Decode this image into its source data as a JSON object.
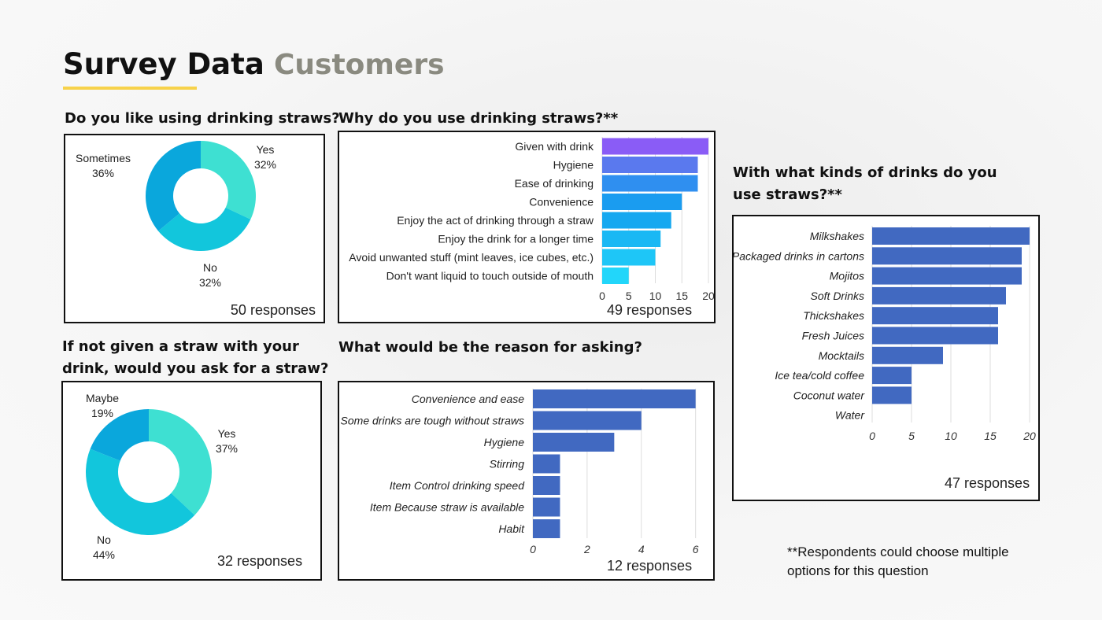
{
  "header": {
    "title": "Survey Data",
    "subtitle": "Customers"
  },
  "colors": {
    "accent_underline": "#f7d24a",
    "bar_blue": "#4169c1"
  },
  "footnote": "**Respondents could choose multiple options for this question",
  "chart_data": [
    {
      "id": "like-straws",
      "type": "pie",
      "title": "Do you like using drinking straws?",
      "labels": [
        "Yes",
        "No",
        "Sometimes"
      ],
      "values": [
        32,
        32,
        36
      ],
      "value_labels": [
        "32%",
        "32%",
        "36%"
      ],
      "colors": [
        "#3ee0d2",
        "#12c6dc",
        "#0aa7dc"
      ],
      "responses": "50 responses"
    },
    {
      "id": "why-straws",
      "type": "bar",
      "orientation": "horizontal",
      "title": "Why do you use drinking straws?**",
      "categories": [
        "Given with drink",
        "Hygiene",
        "Ease of drinking",
        "Convenience",
        "Enjoy the act of drinking through a straw",
        "Enjoy the drink for a longer time",
        "Avoid unwanted stuff (mint leaves, ice cubes, etc.)",
        "Don't want liquid to touch outside of mouth"
      ],
      "values": [
        20,
        18,
        18,
        15,
        13,
        11,
        10,
        5
      ],
      "colors": [
        "#8a5cf6",
        "#5a79ee",
        "#2f8ff0",
        "#1a9cf0",
        "#16a8f0",
        "#1ab8f4",
        "#1ec6f7",
        "#22d6fa"
      ],
      "xticks": [
        "0",
        "5",
        "10",
        "15",
        "20"
      ],
      "xlim": [
        0,
        20
      ],
      "responses": "49 responses"
    },
    {
      "id": "drink-kinds",
      "type": "bar",
      "orientation": "horizontal",
      "title": "With what kinds of drinks do you use straws?**",
      "categories": [
        "Milkshakes",
        "Packaged drinks in cartons",
        "Mojitos",
        "Soft Drinks",
        "Thickshakes",
        "Fresh Juices",
        "Mocktails",
        "Ice tea/cold coffee",
        "Coconut water",
        "Water"
      ],
      "values": [
        20,
        19,
        19,
        17,
        16,
        16,
        9,
        5,
        5,
        0
      ],
      "xticks": [
        "0",
        "5",
        "10",
        "15",
        "20"
      ],
      "xlim": [
        0,
        20
      ],
      "responses": "47 responses"
    },
    {
      "id": "ask-straw",
      "type": "pie",
      "title": "If not given a straw with your drink, would you ask for a straw?",
      "labels": [
        "Yes",
        "No",
        "Maybe"
      ],
      "values": [
        37,
        44,
        19
      ],
      "value_labels": [
        "37%",
        "44%",
        "19%"
      ],
      "colors": [
        "#3ee0d2",
        "#12c6dc",
        "#0aa7dc"
      ],
      "responses": "32 responses"
    },
    {
      "id": "reason-asking",
      "type": "bar",
      "orientation": "horizontal",
      "title": "What would be the reason for asking?",
      "categories": [
        "Convenience and ease",
        "Some drinks are tough without straws",
        "Hygiene",
        "Stirring",
        "Item Control drinking speed",
        "Item Because straw is available",
        "Habit"
      ],
      "values": [
        6,
        4,
        3,
        1,
        1,
        1,
        1
      ],
      "xticks": [
        "0",
        "2",
        "4",
        "6"
      ],
      "xlim": [
        0,
        6.3
      ],
      "responses": "12 responses"
    }
  ]
}
